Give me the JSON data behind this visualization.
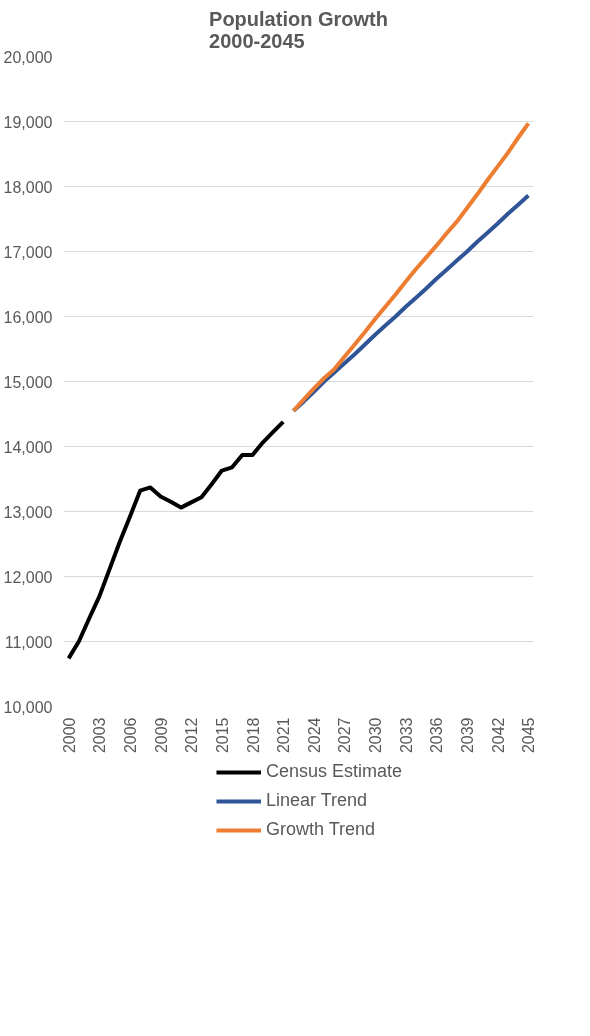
{
  "chart_data": {
    "type": "line",
    "title": "Population Growth\n2000-2045",
    "xlim": [
      1999.5,
      2045.5
    ],
    "xticks": [
      2000,
      2003,
      2006,
      2009,
      2012,
      2015,
      2018,
      2021,
      2024,
      2027,
      2030,
      2033,
      2036,
      2039,
      2042,
      2045
    ],
    "ylim": [
      10000,
      20000
    ],
    "yticks": [
      {
        "value": 10000,
        "label": "10,000"
      },
      {
        "value": 11000,
        "label": "11,000"
      },
      {
        "value": 12000,
        "label": "12,000"
      },
      {
        "value": 13000,
        "label": "13,000"
      },
      {
        "value": 14000,
        "label": "14,000"
      },
      {
        "value": 15000,
        "label": "15,000"
      },
      {
        "value": 16000,
        "label": "16,000"
      },
      {
        "value": 17000,
        "label": "17,000"
      },
      {
        "value": 18000,
        "label": "18,000"
      },
      {
        "value": 19000,
        "label": "19,000"
      },
      {
        "value": 20000,
        "label": "20,000"
      }
    ],
    "grid": "y",
    "legend": "bottom",
    "marker": "none",
    "line_style": "solid",
    "series": [
      {
        "name": "Census Estimate",
        "color": "#000000",
        "x": [
          2000,
          2001,
          2002,
          2003,
          2004,
          2005,
          2006,
          2007,
          2008,
          2009,
          2010,
          2011,
          2012,
          2013,
          2014,
          2015,
          2016,
          2017,
          2018,
          2019,
          2020,
          2021
        ],
        "values": [
          10740,
          11000,
          11350,
          11690,
          12110,
          12530,
          12920,
          13320,
          13370,
          13230,
          13150,
          13060,
          13140,
          13220,
          13420,
          13630,
          13680,
          13870,
          13870,
          14060,
          14220,
          14380
        ]
      },
      {
        "name": "Linear Trend",
        "color": "#2f5597",
        "x": [
          2022,
          2023,
          2024,
          2025,
          2026,
          2027,
          2028,
          2029,
          2030,
          2031,
          2032,
          2033,
          2034,
          2035,
          2036,
          2037,
          2038,
          2039,
          2040,
          2041,
          2042,
          2043,
          2044,
          2045
        ],
        "values": [
          14550,
          14690,
          14840,
          15000,
          15140,
          15280,
          15420,
          15570,
          15720,
          15860,
          16000,
          16150,
          16290,
          16430,
          16580,
          16720,
          16860,
          17000,
          17150,
          17290,
          17430,
          17580,
          17720,
          17860
        ]
      },
      {
        "name": "Growth Trend",
        "color": "#ed7d31",
        "x": [
          2022,
          2023,
          2024,
          2025,
          2026,
          2027,
          2028,
          2029,
          2030,
          2031,
          2032,
          2033,
          2034,
          2035,
          2036,
          2037,
          2038,
          2039,
          2040,
          2041,
          2042,
          2043,
          2044,
          2045
        ],
        "values": [
          14550,
          14720,
          14890,
          15050,
          15190,
          15380,
          15570,
          15760,
          15960,
          16150,
          16340,
          16540,
          16730,
          16910,
          17090,
          17280,
          17460,
          17670,
          17880,
          18100,
          18310,
          18520,
          18750,
          18970
        ]
      }
    ]
  }
}
